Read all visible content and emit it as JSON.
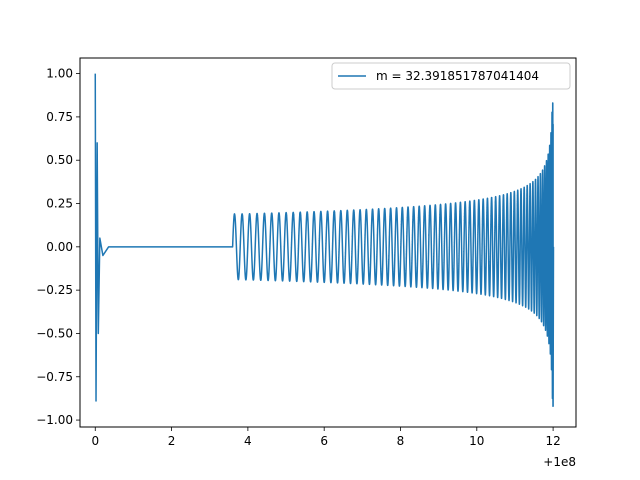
{
  "chart_data": {
    "type": "line",
    "title": "",
    "xlabel": "",
    "ylabel": "",
    "x_offset_label": "+1e8",
    "xlim": [
      -0.4,
      12.6
    ],
    "ylim": [
      -1.04,
      1.09
    ],
    "x_ticks": [
      0,
      2,
      4,
      6,
      8,
      10,
      12
    ],
    "x_tick_labels": [
      "0",
      "2",
      "4",
      "6",
      "8",
      "10",
      "12"
    ],
    "y_ticks": [
      -1.0,
      -0.75,
      -0.5,
      -0.25,
      0.0,
      0.25,
      0.5,
      0.75,
      1.0
    ],
    "y_tick_labels": [
      "−1.00",
      "−0.75",
      "−0.50",
      "−0.25",
      "0.00",
      "0.25",
      "0.50",
      "0.75",
      "1.00"
    ],
    "grid": false,
    "legend_position": "upper-right",
    "color": "#1f77b4",
    "series": [
      {
        "name": "m = 32.391851787041404",
        "color": "#1f77b4",
        "waveform": {
          "initial_burst": {
            "x": [
              0,
              0.02,
              0.05,
              0.08,
              0.12,
              0.2,
              0.35
            ],
            "y": [
              1.0,
              -0.89,
              0.6,
              -0.5,
              0.05,
              -0.05,
              0.0
            ]
          },
          "flat_segment": {
            "x_start": 0.35,
            "x_end": 3.6,
            "y": 0.0
          },
          "chirp": {
            "x_start": 3.6,
            "x_end": 12.0,
            "start_amplitude": 0.19,
            "amplitude_at_10": 0.27,
            "peak_max": 0.83,
            "peak_min": -0.92,
            "start_period": 0.2
          }
        }
      }
    ]
  }
}
